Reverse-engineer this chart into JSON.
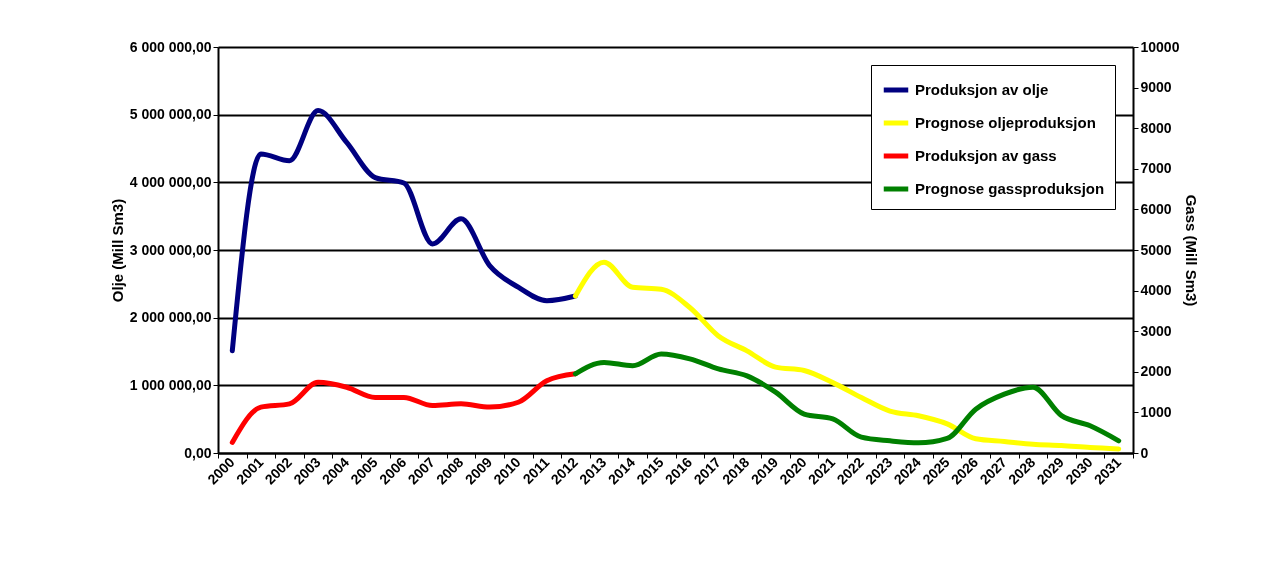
{
  "chart_data": {
    "type": "line",
    "xlabel": null,
    "ylabel": "Olje (Mill Sm3)",
    "y2label": "Gass (Mill Sm3)",
    "categories": [
      "2000",
      "2001",
      "2002",
      "2003",
      "2004",
      "2005",
      "2006",
      "2007",
      "2008",
      "2009",
      "2010",
      "2011",
      "2012",
      "2013",
      "2014",
      "2015",
      "2016",
      "2017",
      "2018",
      "2019",
      "2020",
      "2021",
      "2022",
      "2023",
      "2024",
      "2025",
      "2026",
      "2027",
      "2028",
      "2029",
      "2030",
      "2031"
    ],
    "series": [
      {
        "name": "Produksjon av olje",
        "color": "#000080",
        "values": [
          1510000,
          4420000,
          4320000,
          5060000,
          4590000,
          4070000,
          3990000,
          3090000,
          3460000,
          2770000,
          2450000,
          2250000,
          2320000,
          null,
          null,
          null,
          null,
          null,
          null,
          null,
          null,
          null,
          null,
          null,
          null,
          null,
          null,
          null,
          null,
          null,
          null,
          null
        ]
      },
      {
        "name": "Prognose oljeproduksjon",
        "color": "#ffff00",
        "values": [
          null,
          null,
          null,
          null,
          null,
          null,
          null,
          null,
          null,
          null,
          null,
          null,
          2320000,
          2820000,
          2450000,
          2420000,
          2150000,
          1730000,
          1510000,
          1270000,
          1220000,
          1040000,
          820000,
          620000,
          550000,
          430000,
          210000,
          170000,
          130000,
          110000,
          80000,
          60000
        ]
      },
      {
        "name": "Produksjon av gass",
        "color": "#ff0000",
        "axis": "y2",
        "values": [
          260,
          1130,
          1210,
          1740,
          1620,
          1370,
          1370,
          1170,
          1210,
          1130,
          1250,
          1780,
          1950,
          null,
          null,
          null,
          null,
          null,
          null,
          null,
          null,
          null,
          null,
          null,
          null,
          null,
          null,
          null,
          null,
          null,
          null,
          null
        ]
      },
      {
        "name": "Prognose gassproduksjon",
        "color": "#008000",
        "axis": "y2",
        "values": [
          null,
          null,
          null,
          null,
          null,
          null,
          null,
          null,
          null,
          null,
          null,
          null,
          1950,
          2230,
          2150,
          2440,
          2320,
          2070,
          1900,
          1500,
          960,
          840,
          390,
          300,
          250,
          360,
          1080,
          1450,
          1620,
          920,
          670,
          300
        ]
      }
    ],
    "ylim": [
      0,
      6000000
    ],
    "yticks": [
      {
        "value": 0,
        "label": "0,00"
      },
      {
        "value": 1000000,
        "label": "1 000 000,00"
      },
      {
        "value": 2000000,
        "label": "2 000 000,00"
      },
      {
        "value": 3000000,
        "label": "3 000 000,00"
      },
      {
        "value": 4000000,
        "label": "4 000 000,00"
      },
      {
        "value": 5000000,
        "label": "5 000 000,00"
      },
      {
        "value": 6000000,
        "label": "6 000 000,00"
      }
    ],
    "y2lim": [
      0,
      10000
    ],
    "y2ticks": [
      0,
      1000,
      2000,
      3000,
      4000,
      5000,
      6000,
      7000,
      8000,
      9000,
      10000
    ],
    "grid": "y",
    "legend": "top right",
    "marker": "none",
    "line_style": "solid"
  }
}
